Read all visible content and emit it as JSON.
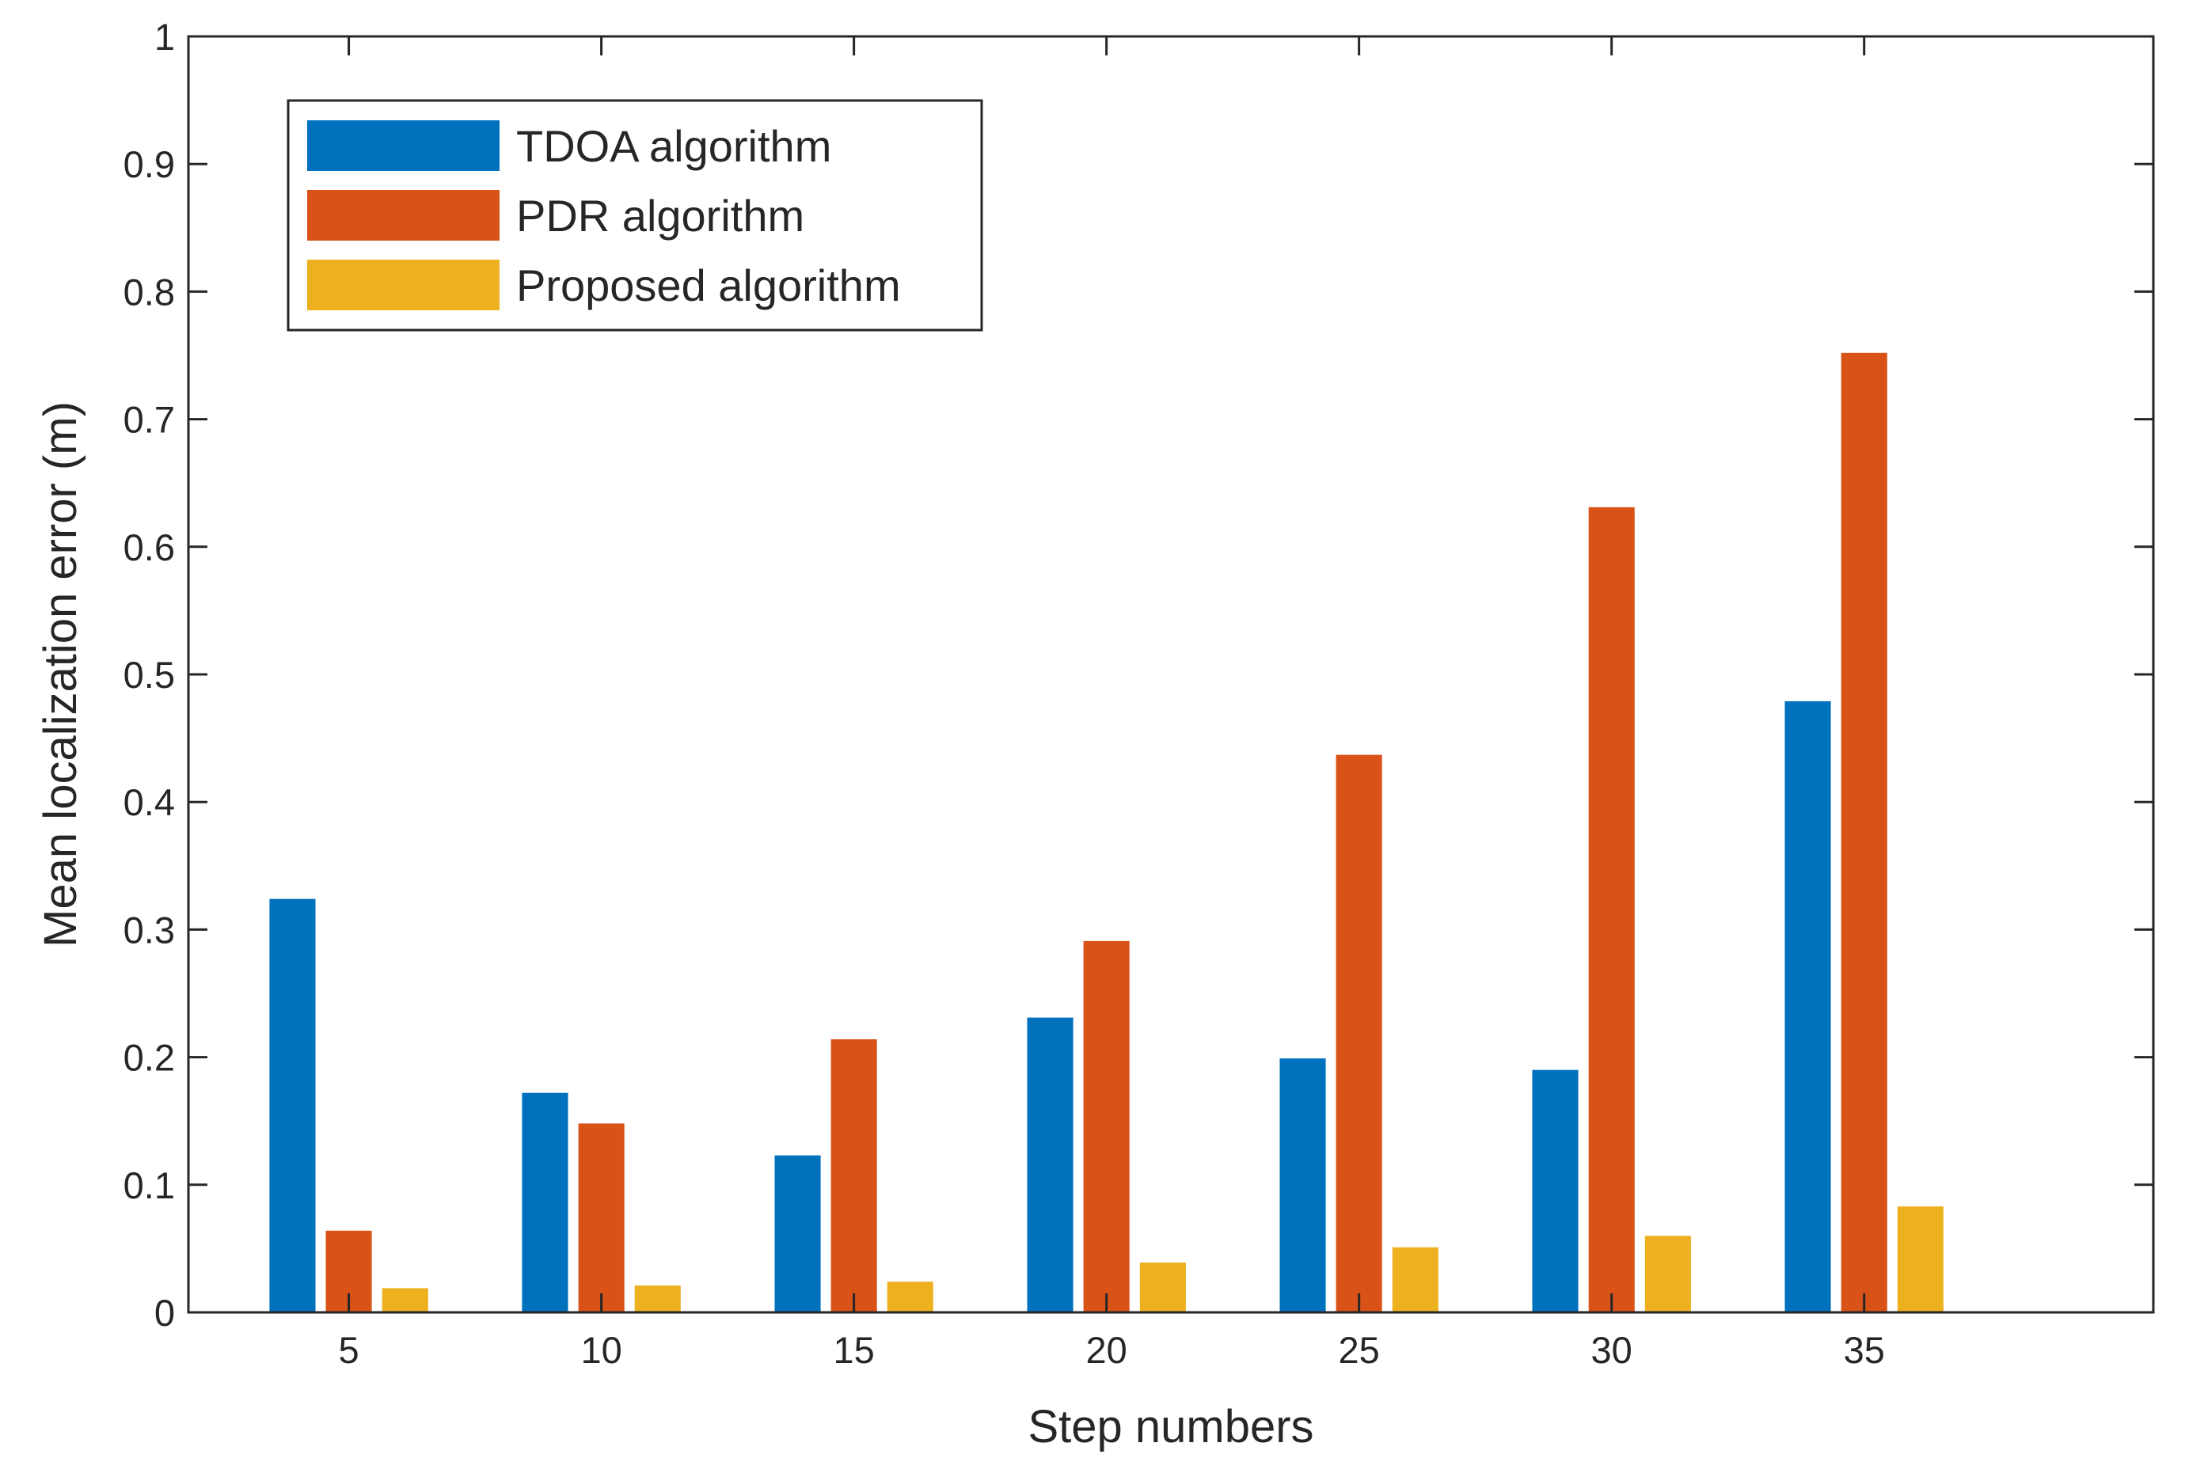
{
  "chart_data": {
    "type": "bar",
    "title": "",
    "xlabel": "Step numbers",
    "ylabel": "Mean localization error (m)",
    "categories": [
      "5",
      "10",
      "15",
      "20",
      "25",
      "30",
      "35"
    ],
    "series": [
      {
        "name": "TDOA algorithm",
        "color": "#0072BD",
        "values": [
          0.324,
          0.172,
          0.123,
          0.231,
          0.199,
          0.19,
          0.479
        ]
      },
      {
        "name": "PDR algorithm",
        "color": "#D95319",
        "values": [
          0.064,
          0.148,
          0.214,
          0.291,
          0.437,
          0.631,
          0.752
        ]
      },
      {
        "name": "Proposed algorithm",
        "color": "#EDB120",
        "values": [
          0.019,
          0.021,
          0.024,
          0.039,
          0.051,
          0.06,
          0.083
        ]
      }
    ],
    "ylim": [
      0,
      1
    ],
    "yticks": [
      "0",
      "0.1",
      "0.2",
      "0.3",
      "0.4",
      "0.5",
      "0.6",
      "0.7",
      "0.8",
      "0.9",
      "1"
    ],
    "grid": false,
    "legend_position": "top-left"
  }
}
